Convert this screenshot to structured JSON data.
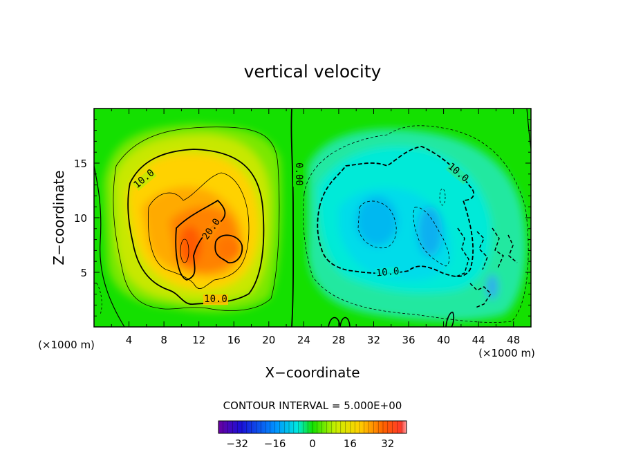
{
  "chart_data": {
    "type": "heatmap",
    "title": "vertical velocity",
    "xlabel": "X−coordinate",
    "ylabel": "Z−coordinate",
    "x_unit_left": "(×1000 m)",
    "x_unit_right": "(×1000 m)",
    "xlim": [
      0,
      50
    ],
    "ylim": [
      0,
      20
    ],
    "x_ticks": [
      4,
      8,
      12,
      16,
      20,
      24,
      28,
      32,
      36,
      40,
      44,
      48
    ],
    "y_ticks": [
      5,
      10,
      15
    ],
    "grid": false,
    "contour_interval_text": "CONTOUR INTERVAL = 5.000E+00",
    "contour_interval": 5,
    "contour_labels": [
      {
        "text": "10.0",
        "x": 5.6,
        "z": 13.2,
        "angle": -40
      },
      {
        "text": "20.0",
        "x": 13.6,
        "z": 8.7,
        "angle": -55
      },
      {
        "text": "10.0",
        "x": 14.2,
        "z": 2.5,
        "angle": 0
      },
      {
        "text": "0.00",
        "x": 22.5,
        "z": 14.2,
        "angle": -90
      },
      {
        "text": "10.0",
        "x": 41.0,
        "z": 13.7,
        "angle": 40
      },
      {
        "text": "10.0",
        "x": 33.2,
        "z": 4.9,
        "angle": -5
      }
    ],
    "features": [
      {
        "name": "updraft",
        "x": 14,
        "z": 8,
        "peak": 24
      },
      {
        "name": "downdraft",
        "x": 33,
        "z": 9,
        "peak": -14
      }
    ],
    "colorbar": {
      "min": -40,
      "max": 40,
      "tick_values": [
        -32,
        -16,
        0,
        16,
        32
      ],
      "tick_labels": [
        "−32",
        "−16",
        "0",
        "16",
        "32"
      ]
    }
  }
}
